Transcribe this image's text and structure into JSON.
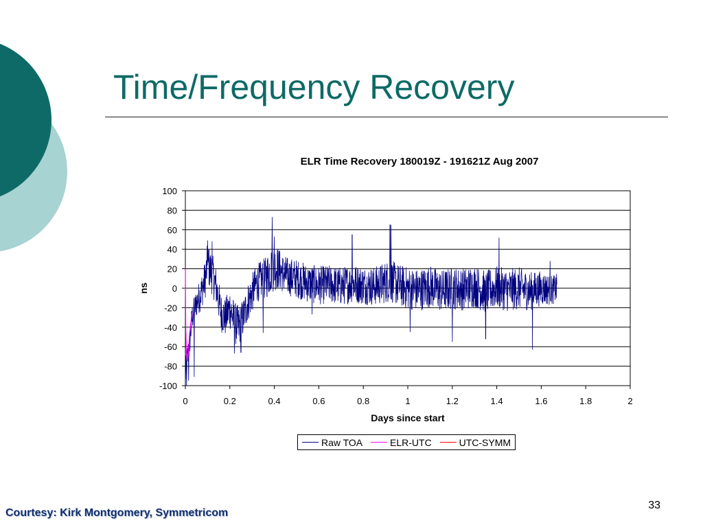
{
  "slide": {
    "title": "Time/Frequency Recovery",
    "courtesy": "Courtesy: Kirk Montgomery, Symmetricom",
    "page_number": "33",
    "colors": {
      "title": "#0e6a66",
      "circle_dark": "#0e6a66",
      "circle_light": "#a7d3d2",
      "courtesy": "#12306e"
    }
  },
  "chart_data": {
    "type": "line",
    "title": "ELR Time Recovery 180019Z - 191621Z Aug 2007",
    "xlabel": "Days since start",
    "ylabel": "ns",
    "xlim": [
      0,
      2
    ],
    "ylim": [
      -100,
      100
    ],
    "x_ticks": [
      "0",
      "0.2",
      "0.4",
      "0.6",
      "0.8",
      "1",
      "1.2",
      "1.4",
      "1.6",
      "1.8",
      "2"
    ],
    "y_ticks": [
      "100",
      "80",
      "60",
      "40",
      "20",
      "0",
      "-20",
      "-40",
      "-60",
      "-80",
      "-100"
    ],
    "grid": "horizontal",
    "legend_position": "bottom",
    "series": [
      {
        "name": "Raw TOA",
        "color": "#000080",
        "x": [
          0,
          0.01,
          0.02,
          0.03,
          0.05,
          0.07,
          0.09,
          0.1,
          0.12,
          0.14,
          0.16,
          0.18,
          0.2,
          0.22,
          0.24,
          0.26,
          0.28,
          0.3,
          0.32,
          0.34,
          0.36,
          0.38,
          0.4,
          0.42,
          0.44,
          0.46,
          0.5,
          0.55,
          0.6,
          0.65,
          0.7,
          0.75,
          0.8,
          0.85,
          0.9,
          0.92,
          0.95,
          1.0,
          1.05,
          1.1,
          1.15,
          1.2,
          1.25,
          1.3,
          1.35,
          1.4,
          1.45,
          1.5,
          1.55,
          1.6,
          1.65,
          1.67
        ],
        "y": [
          -90,
          -70,
          -55,
          -30,
          -15,
          -5,
          10,
          25,
          15,
          0,
          -25,
          -30,
          -20,
          -35,
          -40,
          -30,
          -15,
          -5,
          5,
          8,
          10,
          18,
          22,
          20,
          15,
          12,
          10,
          5,
          3,
          4,
          2,
          5,
          3,
          2,
          6,
          8,
          4,
          0,
          -2,
          2,
          -3,
          0,
          -1,
          2,
          -4,
          1,
          -2,
          0,
          -3,
          0,
          -2,
          0
        ],
        "spread": [
          15,
          15,
          15,
          15,
          15,
          18,
          20,
          22,
          22,
          20,
          20,
          20,
          22,
          22,
          22,
          20,
          20,
          20,
          20,
          20,
          22,
          25,
          25,
          22,
          20,
          20,
          20,
          20,
          20,
          20,
          20,
          20,
          20,
          20,
          22,
          22,
          22,
          22,
          22,
          22,
          22,
          22,
          22,
          22,
          22,
          22,
          22,
          22,
          20,
          18,
          15,
          15
        ],
        "spikes": [
          [
            0.005,
            -100
          ],
          [
            0.015,
            -95
          ],
          [
            0.04,
            -91
          ],
          [
            0.1,
            49
          ],
          [
            0.12,
            48
          ],
          [
            0.22,
            -67
          ],
          [
            0.25,
            -66
          ],
          [
            0.35,
            -46
          ],
          [
            0.39,
            73
          ],
          [
            0.4,
            53
          ],
          [
            0.57,
            -27
          ],
          [
            0.75,
            55
          ],
          [
            0.92,
            65
          ],
          [
            0.925,
            65
          ],
          [
            1.01,
            -45
          ],
          [
            1.2,
            -55
          ],
          [
            1.35,
            -52
          ],
          [
            1.41,
            52
          ],
          [
            1.56,
            -63
          ],
          [
            1.64,
            28
          ]
        ]
      },
      {
        "name": "ELR-UTC",
        "color": "#ff00ff",
        "x": [
          0,
          0.002,
          0.005,
          0.01,
          0.015,
          0.02,
          0.025,
          0.03
        ],
        "y": [
          20,
          -40,
          -70,
          -75,
          -60,
          -45,
          -35,
          -25
        ]
      },
      {
        "name": "UTC-SYMM",
        "color": "#ff0000",
        "x": [],
        "y": []
      }
    ]
  }
}
